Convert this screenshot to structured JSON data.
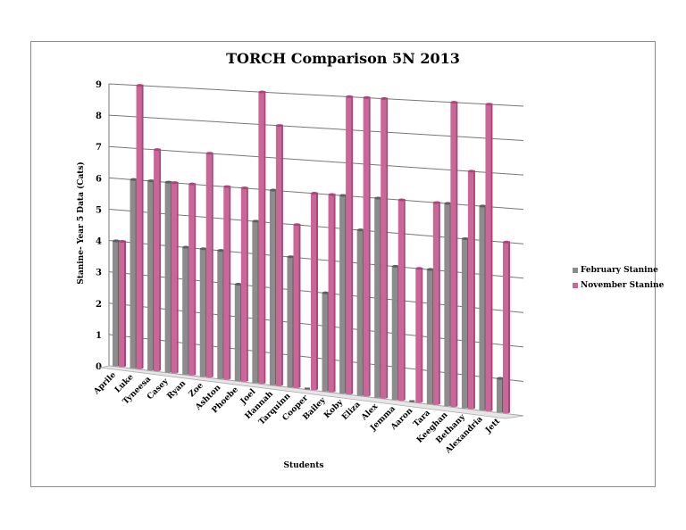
{
  "chart_data": {
    "type": "bar",
    "title": "TORCH Comparison 5N 2013",
    "xlabel": "Students",
    "ylabel": "Stanine- Year 5 Data (Cats)",
    "ylim": [
      0,
      9
    ],
    "yticks": [
      "0",
      "1",
      "2",
      "3",
      "4",
      "5",
      "6",
      "7",
      "8",
      "9"
    ],
    "grid": true,
    "legend": "right",
    "categories": [
      "Aprile",
      "Luke",
      "Tyneesa",
      "Casey",
      "Ryan",
      "Zoe",
      "Ashton",
      "Phoebe",
      "Joel",
      "Hannah",
      "Tarquinn",
      "Cooper",
      "Bailey",
      "Koby",
      "Eliza",
      "Alex",
      "Jemma",
      "Aaron",
      "Tara",
      "Keeghan",
      "Bethany",
      "Alexandria",
      "Jett"
    ],
    "series": [
      {
        "name": "February Stanine",
        "color": "#8c8c8c",
        "values": [
          4,
          6,
          6,
          6,
          4,
          4,
          4,
          3,
          5,
          6,
          4,
          0,
          3,
          6,
          5,
          6,
          4,
          0,
          4,
          6,
          5,
          6,
          1
        ]
      },
      {
        "name": "November Stanine",
        "color": "#cc6699",
        "values": [
          4,
          9,
          7,
          6,
          6,
          7,
          6,
          6,
          9,
          8,
          5,
          6,
          6,
          9,
          9,
          9,
          6,
          4,
          6,
          9,
          7,
          9,
          5
        ]
      }
    ]
  }
}
